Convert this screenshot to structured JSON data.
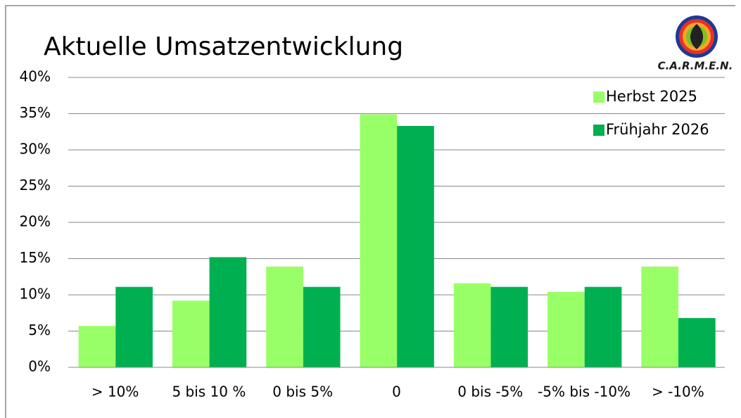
{
  "chart_data": {
    "type": "bar",
    "title": "Aktuelle Umsatzentwicklung",
    "logo": "C.A.R.M.E.N.",
    "categories": [
      "> 10%",
      "5 bis 10 %",
      "0 bis 5%",
      "0",
      "0 bis -5%",
      "-5% bis -10%",
      "> -10%"
    ],
    "series": [
      {
        "name": "Herbst 2025",
        "color": "#99ff66",
        "values": [
          5.7,
          9.2,
          13.9,
          34.9,
          11.6,
          10.4,
          13.9
        ]
      },
      {
        "name": "Frühjahr 2026",
        "color": "#00b050",
        "values": [
          11.1,
          15.2,
          11.1,
          33.3,
          11.1,
          11.1,
          6.8
        ]
      }
    ],
    "ylim": [
      0,
      40
    ],
    "yticks": [
      {
        "value": 0,
        "label": "0%"
      },
      {
        "value": 5,
        "label": "5%"
      },
      {
        "value": 10,
        "label": "10%"
      },
      {
        "value": 15,
        "label": "15%"
      },
      {
        "value": 20,
        "label": "20%"
      },
      {
        "value": 25,
        "label": "25%"
      },
      {
        "value": 30,
        "label": "30%"
      },
      {
        "value": 35,
        "label": "35%"
      },
      {
        "value": 40,
        "label": "40%"
      }
    ],
    "grid": true,
    "legend": "top-right"
  }
}
